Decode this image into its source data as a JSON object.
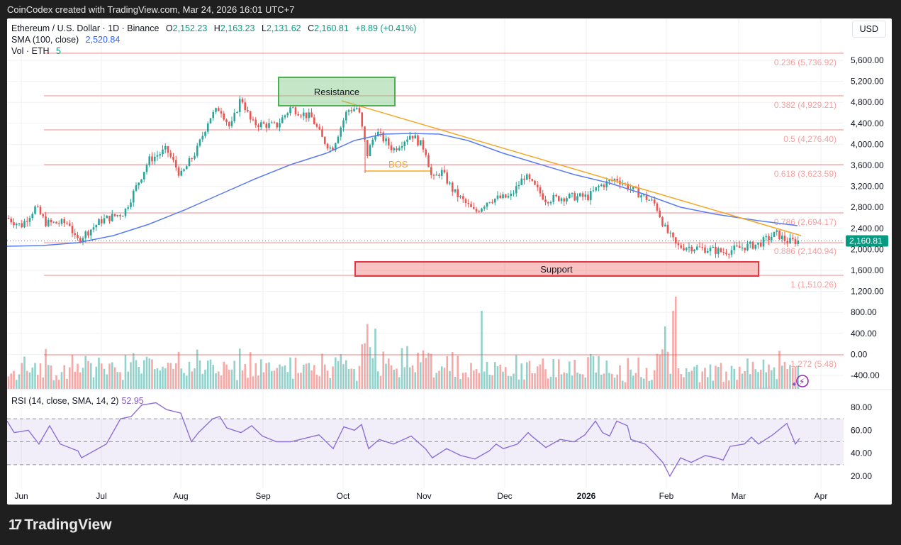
{
  "caption": "CoinCodex created with TradingView.com, Mar 24, 2026 16:01 UTC+7",
  "header": {
    "symbol": "Ethereum / U.S. Dollar · 1D · Binance",
    "open_label": "O",
    "open": "2,152.23",
    "high_label": "H",
    "high": "2,163.23",
    "low_label": "L",
    "low": "2,131.62",
    "close_label": "C",
    "close": "2,160.81",
    "change": "+8.89 (+0.41%)",
    "sma_label": "SMA (100, close)",
    "sma_value": "2,520.84",
    "vol_label": "Vol · ETH",
    "vol_value": "5"
  },
  "currency_button": "USD",
  "price_badge": "2,160.81",
  "rsi": {
    "label": "RSI (14, close, SMA, 14, 2)",
    "value": "52.95"
  },
  "brand": {
    "logo": "17",
    "name": "TradingView"
  },
  "colors": {
    "up": "#26a69a",
    "down": "#ef5350",
    "sma": "#5b7cf0",
    "trend": "#f5a623",
    "fib": "#f5a0a0",
    "rsi": "#8e6fd6",
    "badge": "#089981"
  },
  "chart_data": {
    "type": "candlestick",
    "title": "Ethereum / U.S. Dollar · 1D · Binance",
    "y_axis_ticks": [
      "5,600.00",
      "5,200.00",
      "4,800.00",
      "4,400.00",
      "4,000.00",
      "3,600.00",
      "3,200.00",
      "2,800.00",
      "2,400.00",
      "2,000.00",
      "1,600.00",
      "1,200.00",
      "800.00",
      "400.00",
      "0.00",
      "-400.00"
    ],
    "rsi_axis_ticks": [
      "80.00",
      "60.00",
      "40.00",
      "20.00"
    ],
    "x_axis_ticks": [
      "Jun",
      "Jul",
      "Aug",
      "Sep",
      "Oct",
      "Nov",
      "Dec",
      "2026",
      "Feb",
      "Mar",
      "Apr"
    ],
    "fib_levels": [
      {
        "ratio": "0.236",
        "price": "5,736.92",
        "label": "0.236 (5,736.92)"
      },
      {
        "ratio": "0.382",
        "price": "4,929.21",
        "label": "0.382 (4,929.21)"
      },
      {
        "ratio": "0.5",
        "price": "4,276.40",
        "label": "0.5 (4,276.40)"
      },
      {
        "ratio": "0.618",
        "price": "3,623.59",
        "label": "0.618 (3,623.59)"
      },
      {
        "ratio": "0.786",
        "price": "2,694.17",
        "label": "0.786 (2,694.17)"
      },
      {
        "ratio": "0.886",
        "price": "2,140.94",
        "label": "0.886 (2,140.94)"
      },
      {
        "ratio": "1",
        "price": "1,510.26",
        "label": "1 (1,510.26)"
      },
      {
        "ratio": "1.272",
        "price": "5.48",
        "label": "1.272 (5.48)"
      }
    ],
    "annotations": [
      {
        "type": "box",
        "label": "Resistance",
        "color": "green"
      },
      {
        "type": "box",
        "label": "Support",
        "color": "red"
      },
      {
        "type": "text",
        "label": "BOS"
      },
      {
        "type": "trendline",
        "label": "descending resistance"
      }
    ],
    "monthly_closes_approx": [
      {
        "month": "Jun",
        "price": 2500
      },
      {
        "month": "Jul",
        "price": 2450
      },
      {
        "month": "Aug",
        "price": 3700
      },
      {
        "month": "Sep",
        "price": 4400
      },
      {
        "month": "Oct",
        "price": 4150
      },
      {
        "month": "Nov",
        "price": 3850
      },
      {
        "month": "Dec",
        "price": 2950
      },
      {
        "month": "Jan",
        "price": 2970
      },
      {
        "month": "Feb",
        "price": 2300
      },
      {
        "month": "Mar",
        "price": 1950
      },
      {
        "month": "Mar-24",
        "price": 2160.81
      }
    ],
    "sma_100_last": 2520.84,
    "rsi_last": 52.95,
    "rsi_bands": [
      30,
      50,
      70
    ]
  }
}
